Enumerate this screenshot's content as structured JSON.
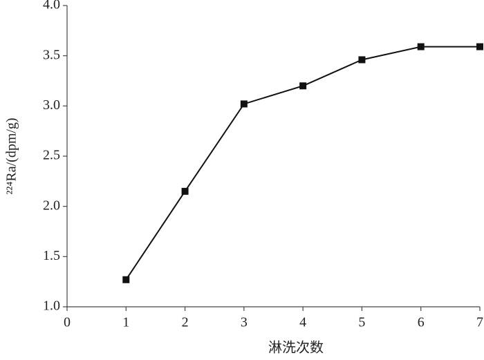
{
  "chart_data": {
    "type": "line",
    "x": [
      1,
      2,
      3,
      4,
      5,
      6,
      7
    ],
    "values": [
      1.27,
      2.15,
      3.02,
      3.2,
      3.46,
      3.59,
      3.59
    ],
    "color": "#111111",
    "xlabel": "淋洗次数",
    "ylabel": "²²⁴Ra/(dpm/g)",
    "xlim": [
      0,
      7
    ],
    "xticks": [
      0,
      1,
      2,
      3,
      4,
      5,
      6,
      7
    ],
    "ylim": [
      1,
      4
    ],
    "yticks": [
      {
        "value": 1,
        "label": "1.0"
      },
      {
        "value": 1.5,
        "label": "1.5"
      },
      {
        "value": 2,
        "label": "2.0"
      },
      {
        "value": 2.5,
        "label": "2.5"
      },
      {
        "value": 3,
        "label": "3.0"
      },
      {
        "value": 3.5,
        "label": "3.5"
      },
      {
        "value": 4,
        "label": "4.0"
      }
    ],
    "grid": false
  }
}
